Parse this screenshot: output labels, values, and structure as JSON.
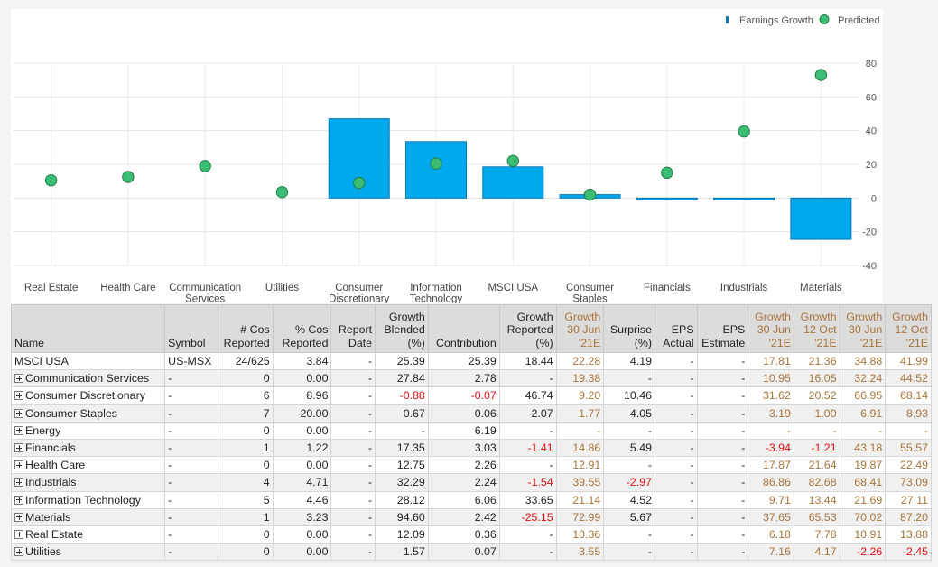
{
  "legend": {
    "bars_label": "Earnings Growth",
    "points_label": "Predicted",
    "position": "top-right"
  },
  "colors": {
    "bar": "#00a8ec",
    "bar_stroke": "#0a78b5",
    "point": "#3cbd74",
    "point_stroke": "#1f7d45",
    "highlight_text": "#a8743a",
    "negative_text": "#e01010"
  },
  "chart_data": {
    "type": "bar",
    "categories": [
      [
        "Real Estate"
      ],
      [
        "Health Care"
      ],
      [
        "Communication",
        "Services"
      ],
      [
        "Utilities"
      ],
      [
        "Consumer",
        "Discretionary"
      ],
      [
        "Information",
        "Technology"
      ],
      [
        "MSCI USA"
      ],
      [
        "Consumer",
        "Staples"
      ],
      [
        "Financials"
      ],
      [
        "Industrials"
      ],
      [
        "Materials"
      ]
    ],
    "series": [
      {
        "name": "Earnings Growth",
        "type": "bar",
        "values": [
          0,
          0,
          0,
          0,
          47,
          33.5,
          18.5,
          2,
          -1,
          -1,
          -24.5
        ]
      },
      {
        "name": "Predicted",
        "type": "scatter",
        "values": [
          10.5,
          12.5,
          19,
          3.5,
          9,
          20.5,
          22,
          2,
          15,
          39.5,
          73
        ]
      }
    ],
    "ylim": [
      -40,
      80
    ],
    "yticks": [
      -40,
      -20,
      0,
      20,
      40,
      60,
      80
    ],
    "grid": true,
    "xlabel": "",
    "ylabel": ""
  },
  "table": {
    "headers": [
      {
        "label": "Name",
        "align": "left",
        "hl": false
      },
      {
        "label": "Symbol",
        "align": "left",
        "hl": false
      },
      {
        "label": "# Cos\nReported",
        "align": "right",
        "hl": false
      },
      {
        "label": "% Cos\nReported",
        "align": "right",
        "hl": false
      },
      {
        "label": "Report\nDate",
        "align": "right",
        "hl": false
      },
      {
        "label": "Growth\nBlended\n(%)",
        "align": "right",
        "hl": false
      },
      {
        "label": "Contribution",
        "align": "right",
        "hl": false
      },
      {
        "label": "Growth\nReported\n(%)",
        "align": "right",
        "hl": false
      },
      {
        "label": "Growth\n30 Jun\n'21E",
        "align": "right",
        "hl": true
      },
      {
        "label": "Surprise\n(%)",
        "align": "right",
        "hl": false
      },
      {
        "label": "EPS\nActual",
        "align": "right",
        "hl": false
      },
      {
        "label": "EPS\nEstimate",
        "align": "right",
        "hl": false
      },
      {
        "label": "Growth\n30 Jun\n'21E",
        "align": "right",
        "hl": true
      },
      {
        "label": "Growth\n12 Oct\n'21E",
        "align": "right",
        "hl": true
      },
      {
        "label": "Growth\n30 Jun\n'21E",
        "align": "right",
        "hl": true
      },
      {
        "label": "Growth\n12 Oct\n'21E",
        "align": "right",
        "hl": true
      }
    ],
    "rows": [
      {
        "expandable": false,
        "cells": [
          "MSCI USA",
          "US-MSX",
          "24/625",
          "3.84",
          "-",
          "25.39",
          "25.39",
          "18.44",
          "22.28",
          "4.19",
          "-",
          "-",
          "17.81",
          "21.36",
          "34.88",
          "41.99"
        ]
      },
      {
        "expandable": true,
        "cells": [
          "Communication Services",
          "-",
          "0",
          "0.00",
          "-",
          "27.84",
          "2.78",
          "-",
          "19.38",
          "-",
          "-",
          "-",
          "10.95",
          "16.05",
          "32.24",
          "44.52"
        ]
      },
      {
        "expandable": true,
        "cells": [
          "Consumer Discretionary",
          "-",
          "6",
          "8.96",
          "-",
          "-0.88",
          "-0.07",
          "46.74",
          "9.20",
          "10.46",
          "-",
          "-",
          "31.62",
          "20.52",
          "66.95",
          "68.14"
        ]
      },
      {
        "expandable": true,
        "cells": [
          "Consumer Staples",
          "-",
          "7",
          "20.00",
          "-",
          "0.67",
          "0.06",
          "2.07",
          "1.77",
          "4.05",
          "-",
          "-",
          "3.19",
          "1.00",
          "6.91",
          "8.93"
        ]
      },
      {
        "expandable": true,
        "cells": [
          "Energy",
          "-",
          "0",
          "0.00",
          "-",
          "-",
          "6.19",
          "-",
          "-",
          "-",
          "-",
          "-",
          "-",
          "-",
          "-",
          "-"
        ]
      },
      {
        "expandable": true,
        "cells": [
          "Financials",
          "-",
          "1",
          "1.22",
          "-",
          "17.35",
          "3.03",
          "-1.41",
          "14.86",
          "5.49",
          "-",
          "-",
          "-3.94",
          "-1.21",
          "43.18",
          "55.57"
        ]
      },
      {
        "expandable": true,
        "cells": [
          "Health Care",
          "-",
          "0",
          "0.00",
          "-",
          "12.75",
          "2.26",
          "-",
          "12.91",
          "-",
          "-",
          "-",
          "17.87",
          "21.64",
          "19.87",
          "22.49"
        ]
      },
      {
        "expandable": true,
        "cells": [
          "Industrials",
          "-",
          "4",
          "4.71",
          "-",
          "32.29",
          "2.24",
          "-1.54",
          "39.55",
          "-2.97",
          "-",
          "-",
          "86.86",
          "82.68",
          "68.41",
          "73.09"
        ]
      },
      {
        "expandable": true,
        "cells": [
          "Information Technology",
          "-",
          "5",
          "4.46",
          "-",
          "28.12",
          "6.06",
          "33.65",
          "21.14",
          "4.52",
          "-",
          "-",
          "9.71",
          "13.44",
          "21.69",
          "27.11"
        ]
      },
      {
        "expandable": true,
        "cells": [
          "Materials",
          "-",
          "1",
          "3.23",
          "-",
          "94.60",
          "2.42",
          "-25.15",
          "72.99",
          "5.67",
          "-",
          "-",
          "37.65",
          "65.53",
          "70.02",
          "87.20"
        ]
      },
      {
        "expandable": true,
        "cells": [
          "Real Estate",
          "-",
          "0",
          "0.00",
          "-",
          "12.09",
          "0.36",
          "-",
          "10.36",
          "-",
          "-",
          "-",
          "6.18",
          "7.78",
          "10.91",
          "13.88"
        ]
      },
      {
        "expandable": true,
        "cells": [
          "Utilities",
          "-",
          "0",
          "0.00",
          "-",
          "1.57",
          "0.07",
          "-",
          "3.55",
          "-",
          "-",
          "-",
          "7.16",
          "4.17",
          "-2.26",
          "-2.45"
        ]
      }
    ]
  }
}
